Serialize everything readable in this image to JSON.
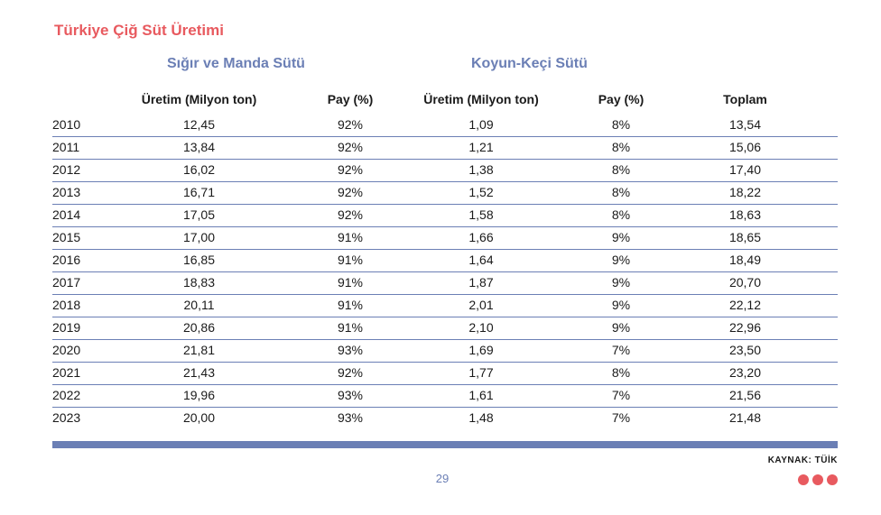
{
  "title": "Türkiye Çiğ Süt Üretimi",
  "accent_color": "#e85a5f",
  "rule_color": "#6b7fb5",
  "groups": {
    "cattle": "Sığır ve Manda Sütü",
    "sheep_goat": "Koyun-Keçi Sütü"
  },
  "headers": [
    "",
    "Üretim (Milyon ton)",
    "Pay (%)",
    "Üretim (Milyon ton)",
    "Pay (%)",
    "Toplam"
  ],
  "rows": [
    [
      "2010",
      "12,45",
      "92%",
      "1,09",
      "8%",
      "13,54"
    ],
    [
      "2011",
      "13,84",
      "92%",
      "1,21",
      "8%",
      "15,06"
    ],
    [
      "2012",
      "16,02",
      "92%",
      "1,38",
      "8%",
      "17,40"
    ],
    [
      "2013",
      "16,71",
      "92%",
      "1,52",
      "8%",
      "18,22"
    ],
    [
      "2014",
      "17,05",
      "92%",
      "1,58",
      "8%",
      "18,63"
    ],
    [
      "2015",
      "17,00",
      "91%",
      "1,66",
      "9%",
      "18,65"
    ],
    [
      "2016",
      "16,85",
      "91%",
      "1,64",
      "9%",
      "18,49"
    ],
    [
      "2017",
      "18,83",
      "91%",
      "1,87",
      "9%",
      "20,70"
    ],
    [
      "2018",
      "20,11",
      "91%",
      "2,01",
      "9%",
      "22,12"
    ],
    [
      "2019",
      "20,86",
      "91%",
      "2,10",
      "9%",
      "22,96"
    ],
    [
      "2020",
      "21,81",
      "93%",
      "1,69",
      "7%",
      "23,50"
    ],
    [
      "2021",
      "21,43",
      "92%",
      "1,77",
      "8%",
      "23,20"
    ],
    [
      "2022",
      "19,96",
      "93%",
      "1,61",
      "7%",
      "21,56"
    ],
    [
      "2023",
      "20,00",
      "93%",
      "1,48",
      "7%",
      "21,48"
    ]
  ],
  "source": "KAYNAK: TÜİK",
  "page_number": "29"
}
